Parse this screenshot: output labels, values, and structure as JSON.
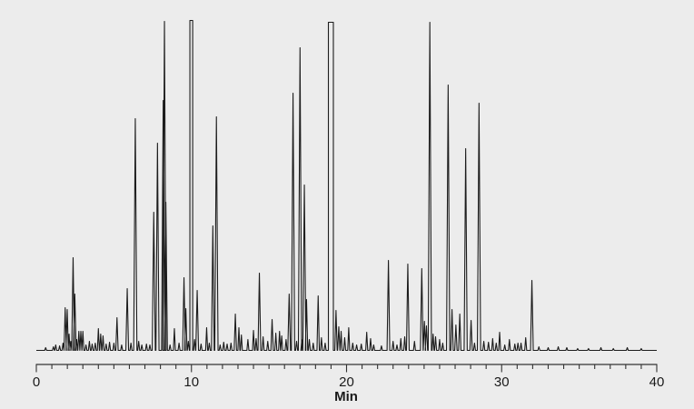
{
  "figure": {
    "background_color": "#ECECEC",
    "trace_color": "#1C1C1C",
    "axis_color": "#333333",
    "text_color": "#1A1A1A"
  },
  "chart_data": {
    "type": "line",
    "title": "",
    "xlabel": "Min",
    "ylabel": "",
    "x_range": [
      0,
      40
    ],
    "x_major_ticks": [
      0,
      10,
      20,
      30,
      40
    ],
    "x_major_tick_labels": [
      "0",
      "10",
      "20",
      "30",
      "40"
    ],
    "x_minor_tick_interval": 1,
    "y_axis_shown": false,
    "peak_height_units": "px-above-baseline (detector response axis not shown)",
    "peaks": [
      [
        0.6,
        3
      ],
      [
        1.1,
        4
      ],
      [
        1.25,
        6
      ],
      [
        1.5,
        5
      ],
      [
        1.72,
        8
      ],
      [
        1.86,
        47
      ],
      [
        1.99,
        45
      ],
      [
        2.11,
        18
      ],
      [
        2.22,
        10
      ],
      [
        2.37,
        102
      ],
      [
        2.48,
        62
      ],
      [
        2.6,
        12
      ],
      [
        2.74,
        21
      ],
      [
        2.87,
        21
      ],
      [
        3.0,
        21
      ],
      [
        3.2,
        6
      ],
      [
        3.42,
        10
      ],
      [
        3.6,
        7
      ],
      [
        3.8,
        8
      ],
      [
        4.0,
        24
      ],
      [
        4.15,
        18
      ],
      [
        4.3,
        16
      ],
      [
        4.5,
        7
      ],
      [
        4.72,
        9
      ],
      [
        5.0,
        8
      ],
      [
        5.2,
        36
      ],
      [
        5.5,
        6
      ],
      [
        5.86,
        68
      ],
      [
        6.1,
        8
      ],
      [
        6.38,
        255
      ],
      [
        6.6,
        10
      ],
      [
        6.8,
        6
      ],
      [
        7.1,
        7
      ],
      [
        7.32,
        6
      ],
      [
        7.57,
        152
      ],
      [
        7.81,
        228
      ],
      [
        8.18,
        275
      ],
      [
        8.26,
        362
      ],
      [
        8.35,
        163
      ],
      [
        8.62,
        6
      ],
      [
        8.9,
        24
      ],
      [
        9.2,
        8
      ],
      [
        9.52,
        80
      ],
      [
        9.64,
        46
      ],
      [
        9.8,
        10
      ],
      [
        9.9,
        363,
        10.08
      ],
      [
        10.2,
        12
      ],
      [
        10.37,
        66
      ],
      [
        10.62,
        7
      ],
      [
        10.98,
        25
      ],
      [
        11.15,
        8
      ],
      [
        11.38,
        137
      ],
      [
        11.61,
        257
      ],
      [
        11.85,
        6
      ],
      [
        12.08,
        9
      ],
      [
        12.3,
        7
      ],
      [
        12.55,
        8
      ],
      [
        12.83,
        40
      ],
      [
        13.06,
        25
      ],
      [
        13.22,
        17
      ],
      [
        13.64,
        12
      ],
      [
        14.0,
        22
      ],
      [
        14.17,
        13
      ],
      [
        14.38,
        85
      ],
      [
        14.62,
        15
      ],
      [
        14.92,
        10
      ],
      [
        15.2,
        34
      ],
      [
        15.44,
        19
      ],
      [
        15.68,
        21
      ],
      [
        15.82,
        16
      ],
      [
        16.1,
        12
      ],
      [
        16.3,
        62
      ],
      [
        16.55,
        283
      ],
      [
        16.78,
        10
      ],
      [
        17.0,
        333
      ],
      [
        17.12,
        12
      ],
      [
        17.28,
        182
      ],
      [
        17.42,
        56
      ],
      [
        17.6,
        12
      ],
      [
        17.85,
        8
      ],
      [
        18.17,
        60
      ],
      [
        18.38,
        14
      ],
      [
        18.62,
        8
      ],
      [
        18.83,
        361,
        19.15
      ],
      [
        19.32,
        44
      ],
      [
        19.5,
        26
      ],
      [
        19.65,
        21
      ],
      [
        19.88,
        14
      ],
      [
        20.14,
        25
      ],
      [
        20.4,
        8
      ],
      [
        20.65,
        6
      ],
      [
        20.95,
        7
      ],
      [
        21.3,
        20
      ],
      [
        21.55,
        13
      ],
      [
        21.75,
        6
      ],
      [
        22.25,
        5
      ],
      [
        22.7,
        99
      ],
      [
        23.0,
        10
      ],
      [
        23.25,
        6
      ],
      [
        23.5,
        13
      ],
      [
        23.75,
        15
      ],
      [
        23.95,
        95
      ],
      [
        24.38,
        10
      ],
      [
        24.85,
        90
      ],
      [
        25.02,
        32
      ],
      [
        25.15,
        27
      ],
      [
        25.37,
        361
      ],
      [
        25.58,
        18
      ],
      [
        25.74,
        15
      ],
      [
        26.0,
        12
      ],
      [
        26.2,
        8
      ],
      [
        26.55,
        292
      ],
      [
        26.8,
        45
      ],
      [
        27.05,
        28
      ],
      [
        27.3,
        40
      ],
      [
        27.68,
        222
      ],
      [
        28.03,
        33
      ],
      [
        28.25,
        8
      ],
      [
        28.54,
        272
      ],
      [
        28.85,
        10
      ],
      [
        29.15,
        9
      ],
      [
        29.42,
        13
      ],
      [
        29.65,
        8
      ],
      [
        29.87,
        20
      ],
      [
        30.2,
        6
      ],
      [
        30.5,
        12
      ],
      [
        30.85,
        7
      ],
      [
        31.05,
        8
      ],
      [
        31.25,
        8
      ],
      [
        31.55,
        14
      ],
      [
        31.95,
        77
      ],
      [
        32.4,
        4
      ],
      [
        33.0,
        3
      ],
      [
        33.65,
        4
      ],
      [
        34.2,
        3
      ],
      [
        34.9,
        2
      ],
      [
        35.6,
        2
      ],
      [
        36.4,
        3
      ],
      [
        37.2,
        2
      ],
      [
        38.1,
        3
      ],
      [
        39.0,
        2
      ]
    ],
    "clipped_peak_times": [
      9.9,
      18.83
    ],
    "legend": null,
    "grid": false
  }
}
